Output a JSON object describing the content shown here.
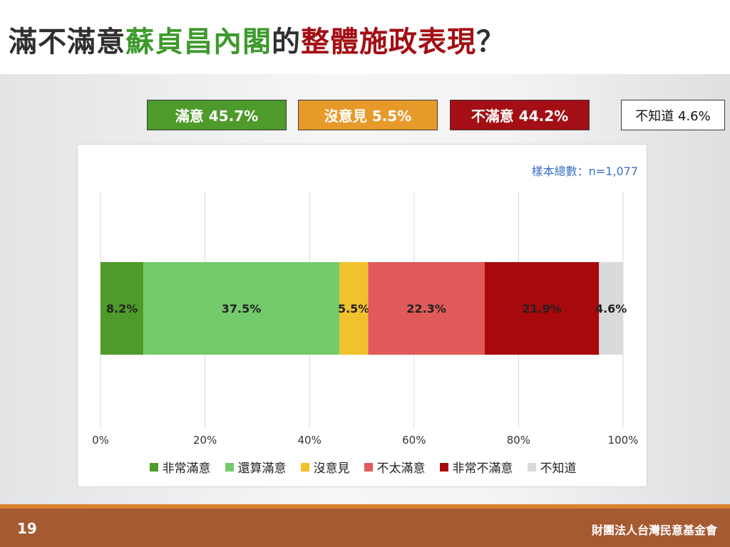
{
  "title_segments": [
    {
      "text": "滿不滿意"
    },
    {
      "text": "蘇貞昌內閣"
    },
    {
      "text": "的"
    },
    {
      "text": "整體施政表現"
    },
    {
      "text": "？"
    }
  ],
  "summary": {
    "satisfied": {
      "label": "滿意 45.7%",
      "color": "#4e9a2a"
    },
    "no_opinion": {
      "label": "沒意見 5.5%",
      "color": "#e79a2a"
    },
    "dissatisfied": {
      "label": "不滿意 44.2%",
      "color": "#a30f14"
    },
    "unknown": {
      "label": "不知道 4.6%",
      "color": "#ffffff"
    }
  },
  "chart_data": {
    "type": "bar",
    "orientation": "horizontal",
    "stacked": true,
    "sample_size_label": "樣本總數：n=1,077",
    "x_ticks": [
      "0%",
      "20%",
      "40%",
      "60%",
      "80%",
      "100%"
    ],
    "xlim": [
      0,
      100
    ],
    "grid": true,
    "legend_position": "bottom",
    "series": [
      {
        "name": "非常滿意",
        "value": 8.2,
        "label": "8.2%",
        "color": "#4e9a2a"
      },
      {
        "name": "還算滿意",
        "value": 37.5,
        "label": "37.5%",
        "color": "#74cb6b"
      },
      {
        "name": "沒意見",
        "value": 5.5,
        "label": "5.5%",
        "color": "#f2c12e"
      },
      {
        "name": "不太滿意",
        "value": 22.3,
        "label": "22.3%",
        "color": "#e05a5a"
      },
      {
        "name": "非常不滿意",
        "value": 21.9,
        "label": "21.9%",
        "color": "#a8090d"
      },
      {
        "name": "不知道",
        "value": 4.6,
        "label": "4.6%",
        "color": "#dadada"
      }
    ]
  },
  "footer": {
    "page_number": "19",
    "organization": "財團法人台灣民意基金會"
  }
}
